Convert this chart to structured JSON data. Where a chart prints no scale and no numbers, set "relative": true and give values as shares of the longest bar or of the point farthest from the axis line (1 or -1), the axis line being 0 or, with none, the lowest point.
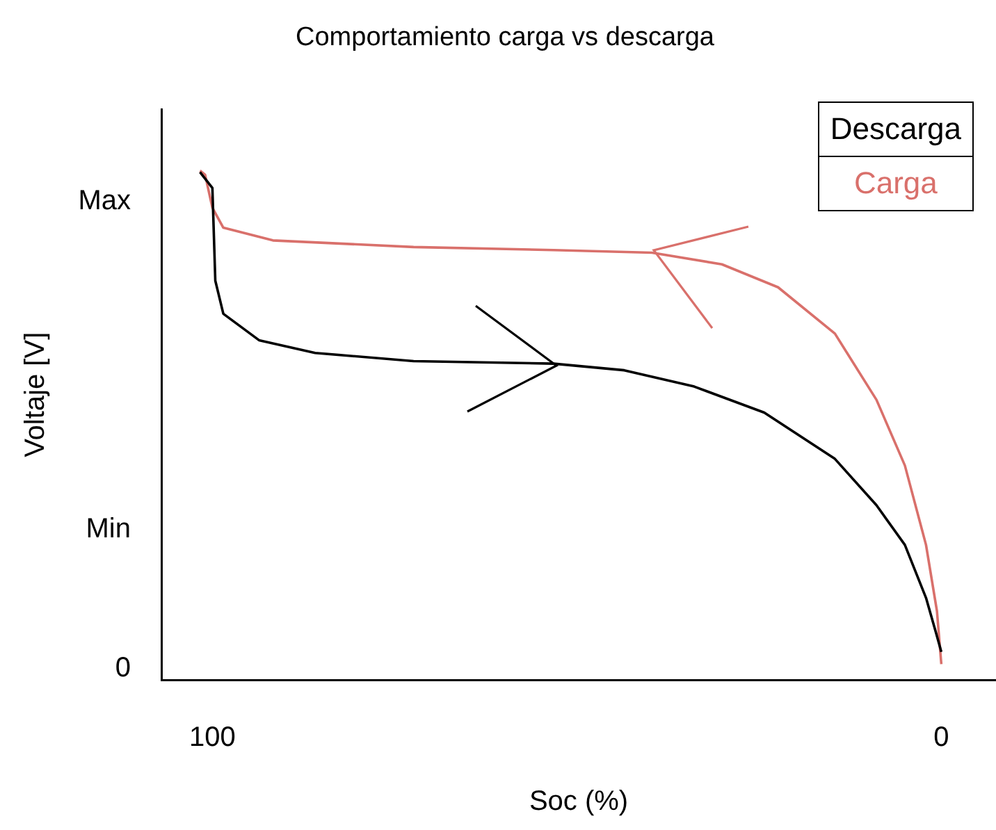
{
  "chart_data": {
    "type": "line",
    "title": "Comportamiento carga vs descarga",
    "xlabel": "Soc (%)",
    "ylabel": "Voltaje [V]",
    "xlim": [
      107,
      -7.5
    ],
    "xticks": [
      100,
      0
    ],
    "relative": true,
    "annotations": [
      "Max",
      "Min",
      "0"
    ],
    "grid": false,
    "legend": "top right",
    "marker": "none",
    "line_style": "solid",
    "series": [
      {
        "name": "Descarga",
        "color": "#000000",
        "x": [
          101.7,
          100,
          99.6,
          98.5,
          93.6,
          85.9,
          72.4,
          53.2,
          43.5,
          33.9,
          24.3,
          14.6,
          8.9,
          5,
          2.1,
          0.8,
          0
        ],
        "values": [
          0.997,
          0.966,
          0.784,
          0.719,
          0.667,
          0.642,
          0.626,
          0.621,
          0.608,
          0.576,
          0.525,
          0.434,
          0.343,
          0.265,
          0.161,
          0.096,
          0.055
        ]
      },
      {
        "name": "Carga",
        "color": "#d9706b",
        "x": [
          0,
          0.6,
          2.1,
          5,
          8.9,
          14.6,
          22.4,
          30.1,
          39.7,
          53.2,
          72.4,
          91.7,
          98.5,
          100,
          101,
          101.7
        ],
        "values": [
          0.031,
          0.135,
          0.265,
          0.421,
          0.55,
          0.68,
          0.771,
          0.816,
          0.839,
          0.844,
          0.85,
          0.863,
          0.888,
          0.927,
          0.992,
          1
        ]
      }
    ]
  }
}
